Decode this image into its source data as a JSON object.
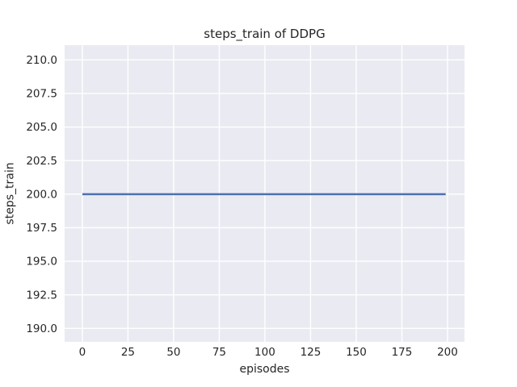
{
  "chart_data": {
    "type": "line",
    "title": "steps_train of DDPG",
    "xlabel": "episodes",
    "ylabel": "steps_train",
    "x_ticks": [
      0,
      25,
      50,
      75,
      100,
      125,
      150,
      175,
      200
    ],
    "x_tick_labels": [
      "0",
      "25",
      "50",
      "75",
      "100",
      "125",
      "150",
      "175",
      "200"
    ],
    "y_ticks": [
      190,
      192.5,
      195,
      197.5,
      200,
      202.5,
      205,
      207.5,
      210
    ],
    "y_tick_labels": [
      "190.0",
      "192.5",
      "195.0",
      "197.5",
      "200.0",
      "202.5",
      "205.0",
      "207.5",
      "210.0"
    ],
    "xlim": [
      -9.7,
      209.3
    ],
    "ylim": [
      189.0,
      211.1
    ],
    "grid": true,
    "legend": "none",
    "series": [
      {
        "name": "steps_train",
        "color": "#4C72B0",
        "x": [
          0,
          199
        ],
        "y": [
          200,
          200
        ]
      }
    ],
    "colors": {
      "figure_background": "#FFFFFF",
      "axes_background": "#EAEAF2",
      "grid": "#FFFFFF",
      "text": "#262626"
    }
  }
}
